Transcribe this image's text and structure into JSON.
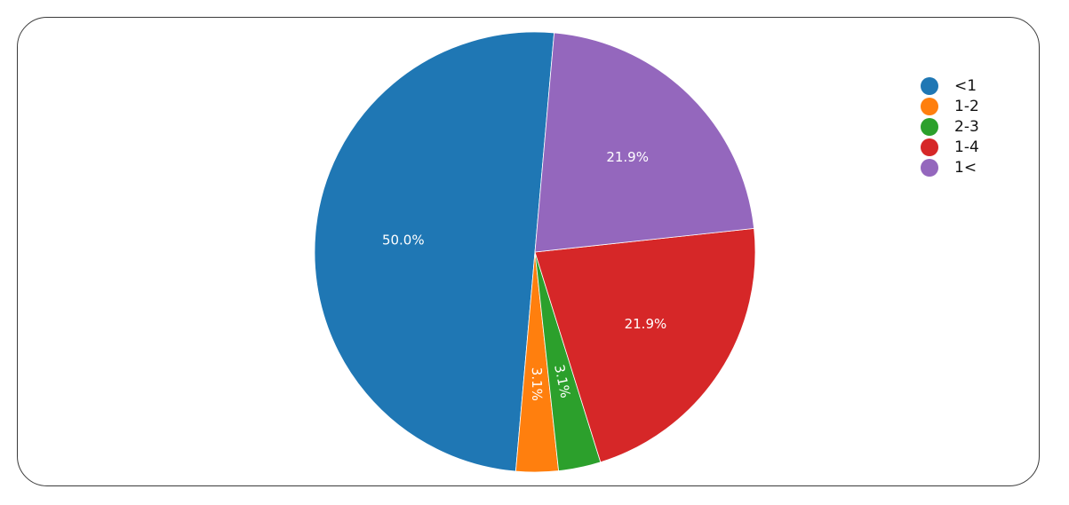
{
  "chart_data": {
    "type": "pie",
    "categories": [
      "<1",
      "1-2",
      "2-3",
      "1-4",
      "1<"
    ],
    "values": [
      50.0,
      3.1,
      3.1,
      21.9,
      21.9
    ],
    "labels": [
      "50.0%",
      "3.1%",
      "3.1%",
      "21.9%",
      "21.9%"
    ],
    "colors": [
      "#1f77b4",
      "#ff7f0e",
      "#2ca02c",
      "#d62728",
      "#9467bd"
    ],
    "start_angle_deg": -85,
    "direction": "counterclockwise",
    "legend_position": "top-right",
    "title": ""
  }
}
